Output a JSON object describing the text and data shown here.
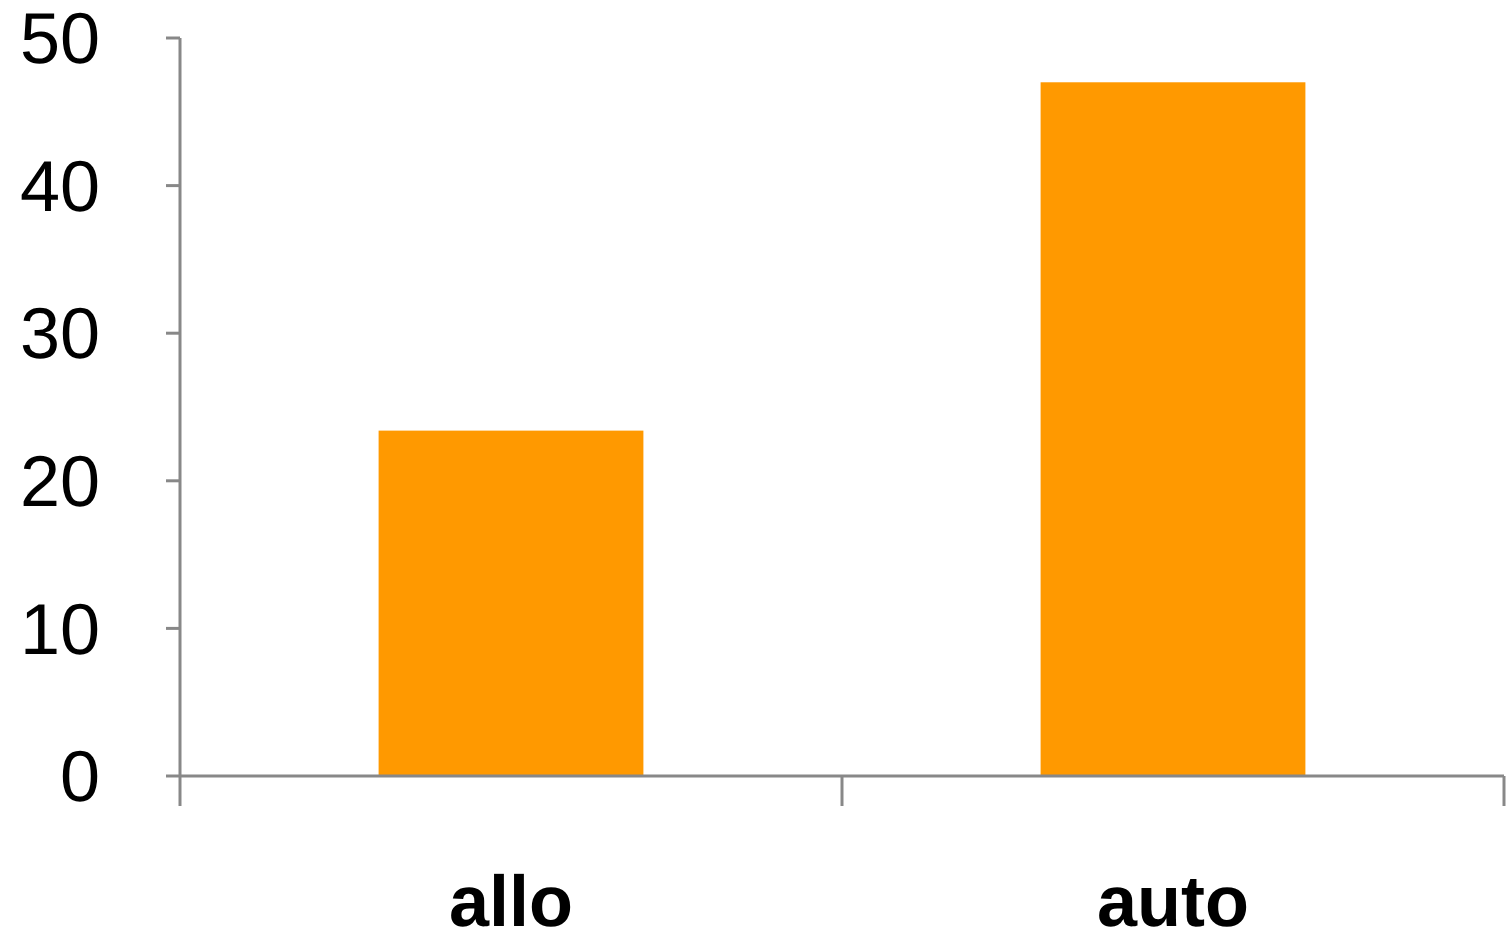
{
  "chart_data": {
    "type": "bar",
    "categories": [
      "allo",
      "auto"
    ],
    "values": [
      23.4,
      47
    ],
    "color": "#ff9900",
    "ylim": [
      0,
      50
    ],
    "yticks": [
      0,
      10,
      20,
      30,
      40,
      50
    ],
    "grid": false
  }
}
